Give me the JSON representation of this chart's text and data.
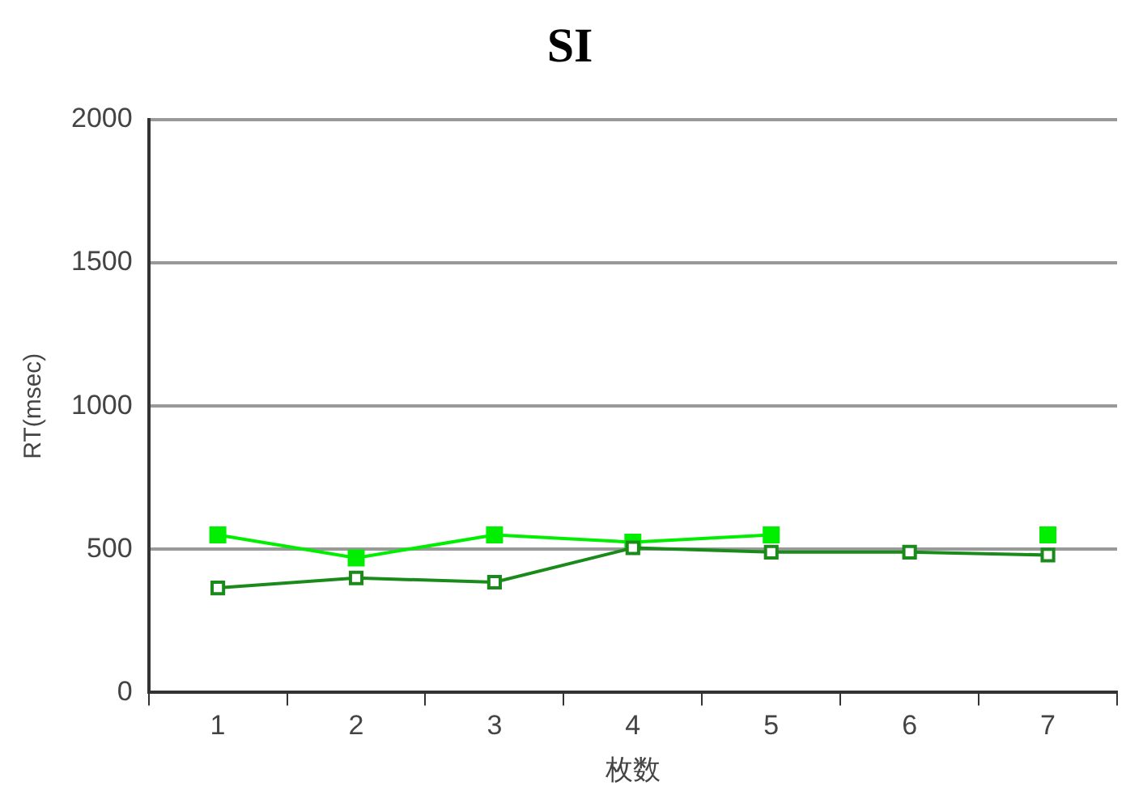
{
  "chart_data": {
    "type": "line",
    "title": "SI",
    "xlabel": "枚数",
    "ylabel": "RT(msec)",
    "categories": [
      "1",
      "2",
      "3",
      "4",
      "5",
      "6",
      "7"
    ],
    "series": [
      {
        "color": "#00ee00",
        "values": [
          550,
          470,
          550,
          525,
          550,
          null,
          550
        ]
      },
      {
        "color": "#1a8a1a",
        "values": [
          365,
          400,
          385,
          505,
          490,
          490,
          480
        ]
      }
    ],
    "ylim": [
      0,
      2000
    ],
    "yticks": [
      0,
      500,
      1000,
      1500,
      2000
    ],
    "grid": "y",
    "legend": false,
    "marker": "square"
  }
}
